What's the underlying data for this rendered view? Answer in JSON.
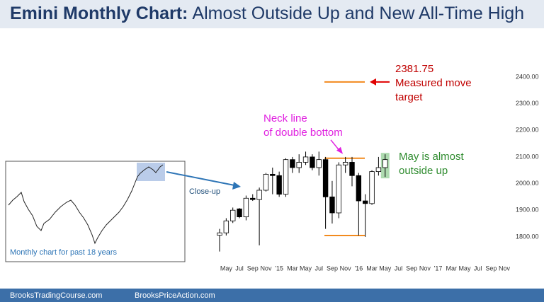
{
  "header": {
    "title_bold": "Emini Monthly Chart:",
    "title_rest": "Almost Outside Up and New All-Time High"
  },
  "chart_data": {
    "type": "candlestick",
    "categories": [
      null,
      "May",
      null,
      "Jul",
      null,
      "Sep",
      null,
      "Nov",
      null,
      "'15",
      null,
      "Mar",
      null,
      "May",
      null,
      "Jul",
      null,
      "Sep",
      null,
      "Nov",
      null,
      "'16",
      null,
      "Mar",
      null,
      "May",
      null,
      "Jul",
      null,
      "Sep",
      null,
      "Nov",
      null,
      "'17",
      null,
      "Mar",
      null,
      "May",
      null,
      "Jul",
      null,
      "Sep",
      null,
      "Nov",
      null
    ],
    "open": [
      1806,
      1815,
      1860,
      1905,
      1875,
      1945,
      1940,
      1975,
      2035,
      2030,
      1960,
      2090,
      2060,
      2080,
      2100,
      2060,
      2090,
      1950,
      1890,
      2070,
      2080,
      2030,
      1935,
      1925,
      2045,
      2060,
      null,
      null,
      null,
      null,
      null,
      null,
      null,
      null,
      null,
      null,
      null,
      null,
      null,
      null,
      null,
      null,
      null,
      null,
      null
    ],
    "high": [
      1830,
      1870,
      1910,
      1908,
      1955,
      1960,
      1985,
      2040,
      2060,
      2045,
      2095,
      2100,
      2110,
      2120,
      2110,
      2120,
      2100,
      2010,
      2080,
      2100,
      2100,
      2040,
      1960,
      2050,
      2100,
      2110,
      null,
      null,
      null,
      null,
      null,
      null,
      null,
      null,
      null,
      null,
      null,
      null,
      null,
      null,
      null,
      null,
      null,
      null,
      null
    ],
    "low": [
      1745,
      1805,
      1852,
      1870,
      1862,
      1935,
      1768,
      1970,
      1960,
      1950,
      1950,
      2040,
      2040,
      2070,
      2050,
      2030,
      1830,
      1850,
      1870,
      2040,
      1990,
      1805,
      1800,
      1920,
      2030,
      2025,
      null,
      null,
      null,
      null,
      null,
      null,
      null,
      null,
      null,
      null,
      null,
      null,
      null,
      null,
      null,
      null,
      null,
      null,
      null
    ],
    "close": [
      1815,
      1860,
      1900,
      1875,
      1945,
      1940,
      1975,
      2035,
      2030,
      1960,
      2090,
      2060,
      2080,
      2100,
      2060,
      2090,
      1950,
      1890,
      2070,
      2080,
      2030,
      1935,
      1925,
      2045,
      2060,
      2090,
      null,
      null,
      null,
      null,
      null,
      null,
      null,
      null,
      null,
      null,
      null,
      null,
      null,
      null,
      null,
      null,
      null,
      null,
      null
    ],
    "up_color": "#ffffff",
    "down_color": "#000000",
    "ylim": [
      1720,
      2530
    ],
    "yticks": [
      {
        "value": 1800,
        "label": "1800.00"
      },
      {
        "value": 1900,
        "label": "1900.00"
      },
      {
        "value": 2000,
        "label": "2000.00"
      },
      {
        "value": 2100,
        "label": "2100.00"
      },
      {
        "value": 2200,
        "label": "2200.00"
      },
      {
        "value": 2300,
        "label": "2300.00"
      },
      {
        "value": 2400,
        "label": "2400.00"
      }
    ],
    "target": 2381.75,
    "target_text": [
      "Measured move",
      "target"
    ],
    "neck_line": 2095,
    "neck_text": [
      "Neck line",
      "of double bottom"
    ],
    "bottom_line": 1805,
    "highlight_text": [
      "May is almost",
      "outside up"
    ],
    "closeup_text": "Close-up"
  },
  "inset": {
    "label": "Monthly chart for past 18 years"
  },
  "footer": {
    "left": "BrooksTradingCourse.com",
    "right": "BrooksPriceAction.com"
  }
}
